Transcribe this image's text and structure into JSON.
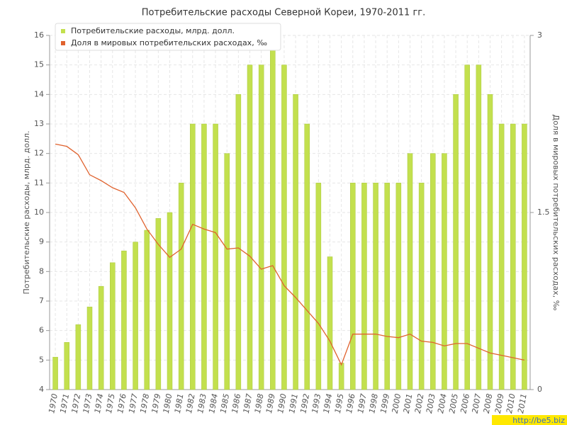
{
  "chart_data": {
    "type": "bar",
    "title": "Потребительские расходы Северной Кореи, 1970-2011 гг.",
    "y_label": "Потребительские расходы, млрд. долл.",
    "y2_label": "Доля в мировых потребительских расходах, ‰",
    "watermark": "http://be5.biz",
    "categories": [
      "1970",
      "1971",
      "1972",
      "1973",
      "1974",
      "1975",
      "1976",
      "1977",
      "1978",
      "1979",
      "1980",
      "1981",
      "1982",
      "1983",
      "1984",
      "1985",
      "1986",
      "1987",
      "1988",
      "1989",
      "1990",
      "1991",
      "1992",
      "1993",
      "1994",
      "1995",
      "1996",
      "1997",
      "1998",
      "1999",
      "2000",
      "2001",
      "2002",
      "2003",
      "2004",
      "2005",
      "2006",
      "2007",
      "2008",
      "2009",
      "2010",
      "2011"
    ],
    "series": [
      {
        "name": "Потребительские расходы, млрд. долл.",
        "type": "bar",
        "color": "#c3e04e",
        "values": [
          5.1,
          5.6,
          6.2,
          6.8,
          7.5,
          8.3,
          8.7,
          9.0,
          9.4,
          9.8,
          10.0,
          11,
          13,
          13,
          13,
          12,
          14,
          15,
          15,
          15.5,
          15,
          14,
          13,
          11,
          8.5,
          4.9,
          11,
          11,
          11,
          11,
          11,
          12,
          11,
          12,
          12,
          14,
          15,
          15,
          14,
          13,
          13,
          13
        ]
      },
      {
        "name": "Доля в мировых потребительских расходах, ‰",
        "type": "line",
        "axis": "y2",
        "color": "#e0622e",
        "values": [
          2.08,
          2.06,
          1.99,
          1.82,
          1.77,
          1.71,
          1.67,
          1.54,
          1.36,
          1.23,
          1.12,
          1.19,
          1.4,
          1.36,
          1.33,
          1.19,
          1.2,
          1.13,
          1.02,
          1.05,
          0.88,
          0.78,
          0.67,
          0.56,
          0.41,
          0.21,
          0.47,
          0.47,
          0.47,
          0.45,
          0.44,
          0.47,
          0.41,
          0.4,
          0.37,
          0.39,
          0.39,
          0.35,
          0.31,
          0.29,
          0.27,
          0.25
        ]
      }
    ],
    "ylim": [
      4,
      16
    ],
    "yticks": [
      4,
      5,
      6,
      7,
      8,
      9,
      10,
      11,
      12,
      13,
      14,
      15,
      16
    ],
    "y2lim": [
      0,
      3
    ],
    "y2ticks": [
      0,
      1.5,
      3
    ],
    "grid": true,
    "legend": "top-left"
  }
}
